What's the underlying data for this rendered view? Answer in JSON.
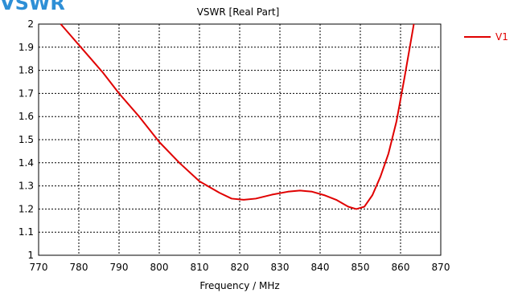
{
  "page": {
    "heading": "VSWR"
  },
  "chart_data": {
    "type": "line",
    "title": "VSWR [Real Part]",
    "xlabel": "Frequency / MHz",
    "ylabel": "",
    "xlim": [
      770,
      870
    ],
    "ylim": [
      1,
      2
    ],
    "xticks": [
      770,
      780,
      790,
      800,
      810,
      820,
      830,
      840,
      850,
      860,
      870
    ],
    "yticks": [
      1,
      1.1,
      1.2,
      1.3,
      1.4,
      1.5,
      1.6,
      1.7,
      1.8,
      1.9,
      2
    ],
    "grid": true,
    "legend_position": "top-right",
    "series": [
      {
        "name": "V1",
        "color": "#e00000",
        "x": [
          775.5,
          778,
          780,
          783,
          786,
          790,
          795,
          800,
          805,
          810,
          815,
          818,
          821,
          824,
          828,
          832,
          835,
          838,
          841,
          844,
          847,
          849,
          851,
          853,
          855,
          857,
          859,
          861,
          862.5,
          863.3
        ],
        "y": [
          2.0,
          1.95,
          1.91,
          1.85,
          1.79,
          1.7,
          1.6,
          1.49,
          1.4,
          1.32,
          1.27,
          1.245,
          1.24,
          1.245,
          1.262,
          1.275,
          1.28,
          1.275,
          1.26,
          1.24,
          1.21,
          1.2,
          1.21,
          1.26,
          1.34,
          1.44,
          1.58,
          1.77,
          1.92,
          2.0
        ]
      }
    ]
  }
}
